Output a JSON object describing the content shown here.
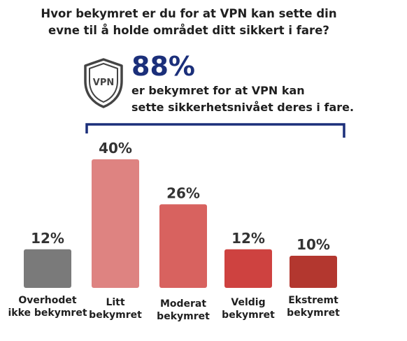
{
  "title": {
    "line1": "Hvor bekymret er du for at VPN kan sette din",
    "line2": "evne til å holde området ditt sikkert i fare?"
  },
  "highlight": {
    "icon_text": "VPN",
    "percent": "88%",
    "line1": "er bekymret for at VPN kan",
    "line2": "sette sikkerhetsnivået deres i fare."
  },
  "colors": {
    "accent": "#1b2f7a",
    "bars": [
      "#7a7a7a",
      "#de8381",
      "#d8625f",
      "#ce4240",
      "#b3372f"
    ]
  },
  "chart_data": {
    "type": "bar",
    "categories": [
      [
        "Overhodet",
        "ikke bekymret"
      ],
      [
        "Litt",
        "bekymret"
      ],
      [
        "Moderat",
        "bekymret"
      ],
      [
        "Veldig",
        "bekymret"
      ],
      [
        "Ekstremt",
        "bekymret"
      ]
    ],
    "values": [
      12,
      40,
      26,
      12,
      10
    ],
    "data_labels": [
      "12%",
      "40%",
      "26%",
      "12%",
      "10%"
    ],
    "unit": "%",
    "ylim": [
      0,
      40
    ],
    "grid": false,
    "legend": "none"
  }
}
